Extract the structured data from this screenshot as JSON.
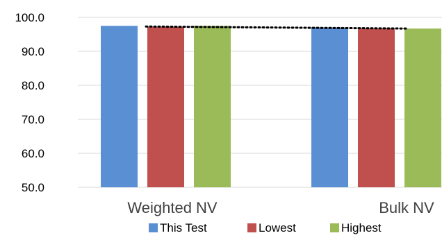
{
  "chart_data": {
    "type": "bar",
    "categories": [
      "Weighted NV",
      "Bulk NV"
    ],
    "series": [
      {
        "name": "This Test",
        "color": "#5b8fd4",
        "values": [
          97.5,
          97.0
        ]
      },
      {
        "name": "Lowest",
        "color": "#c0504d",
        "values": [
          97.2,
          96.7
        ]
      },
      {
        "name": "Highest",
        "color": "#9bbb59",
        "values": [
          97.5,
          96.7
        ]
      }
    ],
    "trend_line": {
      "style": "dotted",
      "color": "#000000",
      "values": [
        97.3,
        96.7
      ]
    },
    "ylim": [
      50,
      100
    ],
    "yticks": [
      "50.0",
      "60.0",
      "70.0",
      "80.0",
      "90.0",
      "100.0"
    ],
    "grid": true,
    "legend": "bottom",
    "title": "",
    "xlabel": "",
    "ylabel": ""
  }
}
